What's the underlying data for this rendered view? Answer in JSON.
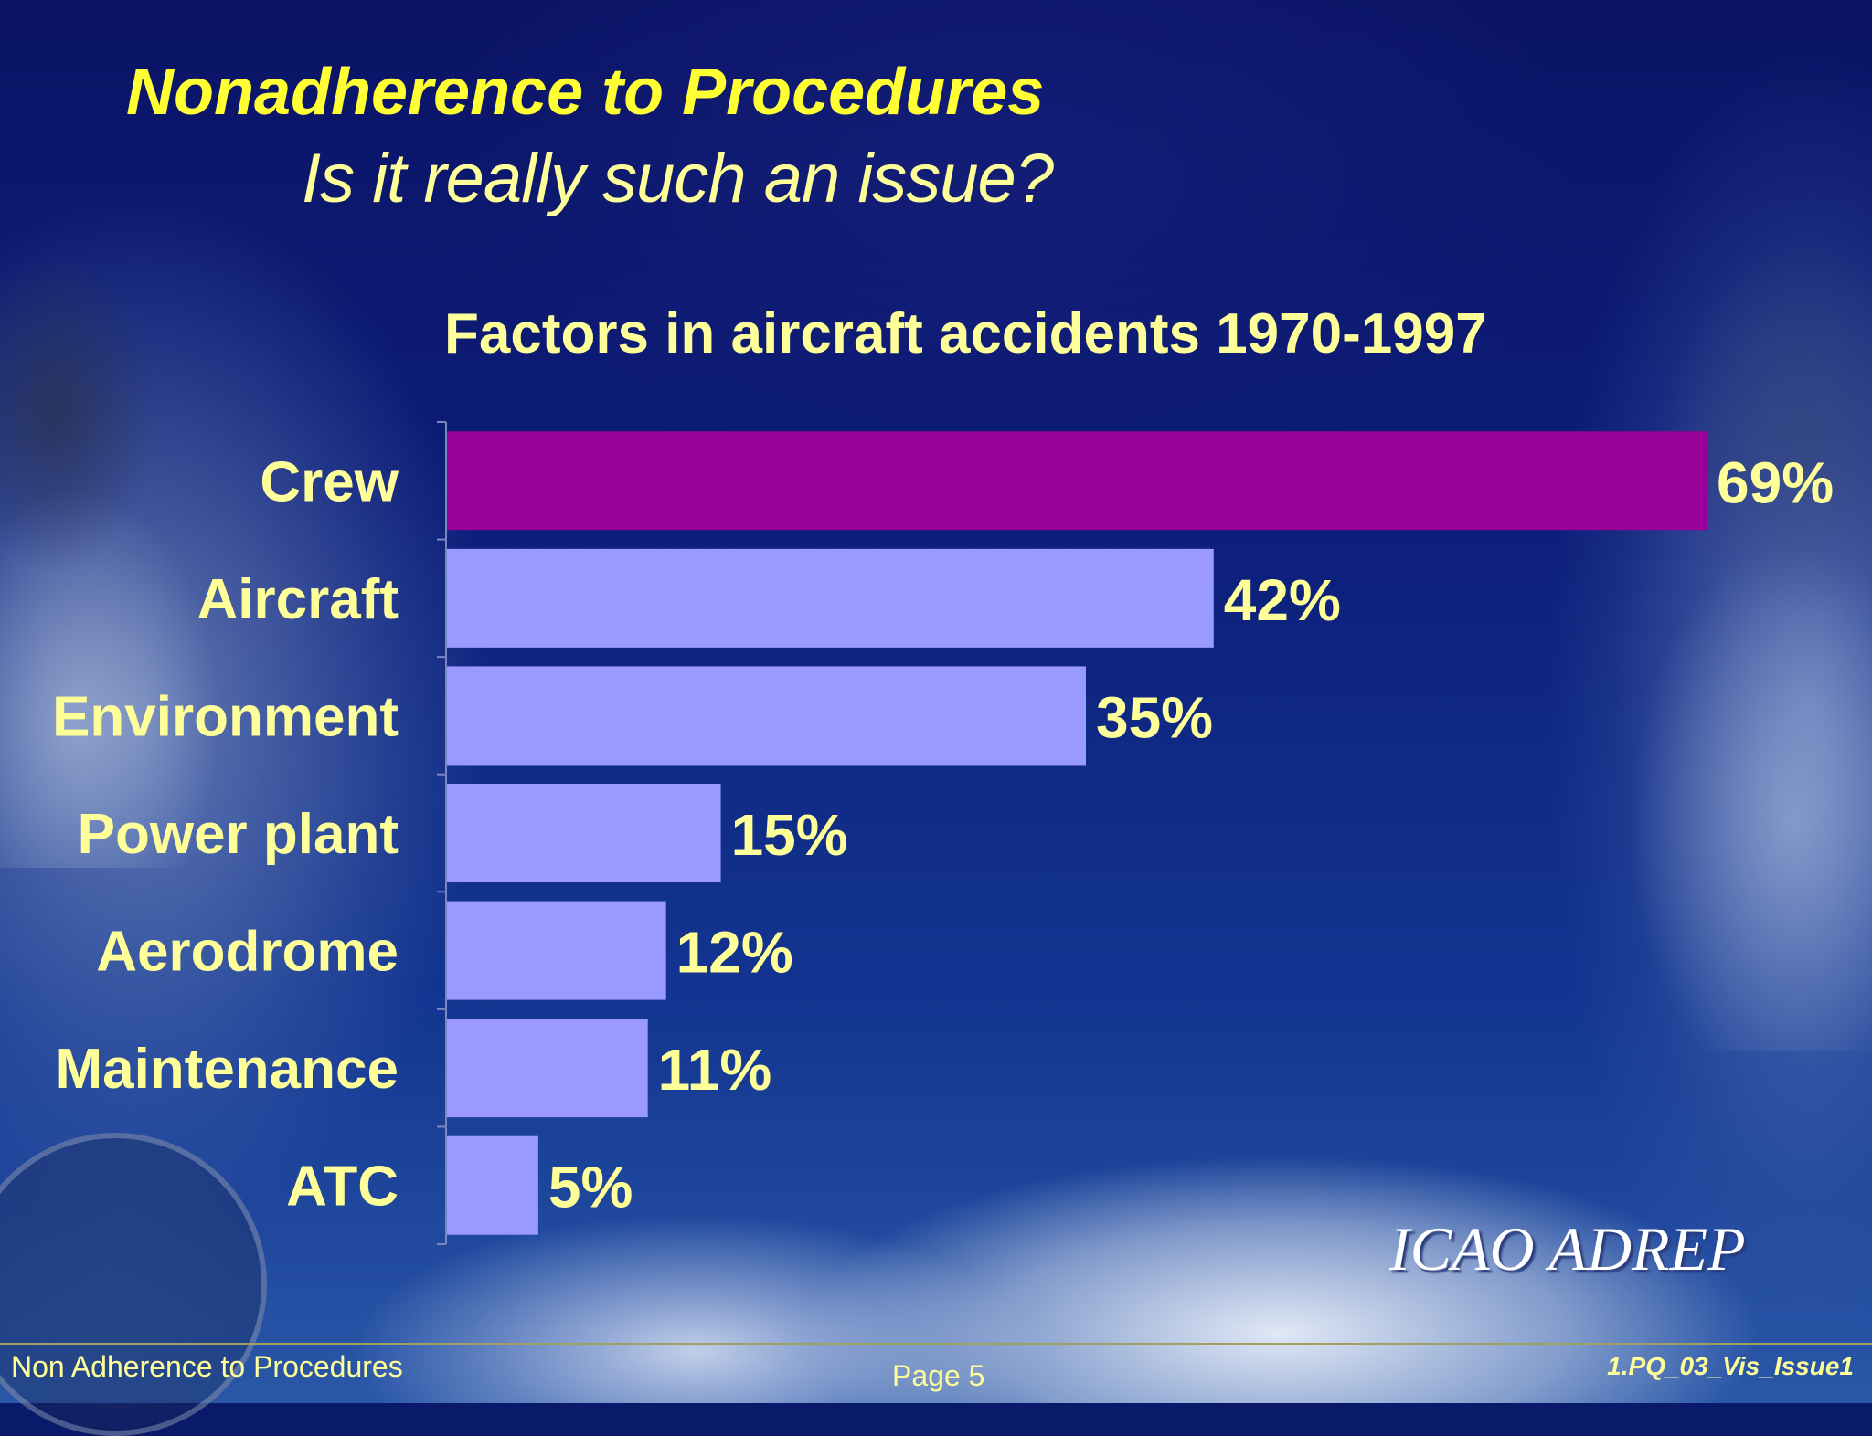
{
  "slide": {
    "title": "Nonadherence to Procedures",
    "subtitle": "Is it really such an issue?",
    "source": "ICAO ADREP",
    "footer_left": "Non Adherence to Procedures",
    "footer_center": "Page 5",
    "footer_right": "1.PQ_03_Vis_Issue1"
  },
  "colors": {
    "highlight_bar": "#990099",
    "bar": "#9999ff",
    "text": "#ffff99",
    "title": "#ffff33"
  },
  "chart_data": {
    "type": "bar",
    "orientation": "horizontal",
    "title": "Factors in aircraft accidents 1970-1997",
    "categories": [
      "Crew",
      "Aircraft",
      "Environment",
      "Power plant",
      "Aerodrome",
      "Maintenance",
      "ATC"
    ],
    "values": [
      69,
      42,
      35,
      15,
      12,
      11,
      5
    ],
    "value_labels": [
      "69%",
      "42%",
      "35%",
      "15%",
      "12%",
      "11%",
      "5%"
    ],
    "highlight": "Crew",
    "unit": "%",
    "xlim": [
      0,
      69
    ],
    "xlabel": "",
    "ylabel": "",
    "grid": false
  }
}
